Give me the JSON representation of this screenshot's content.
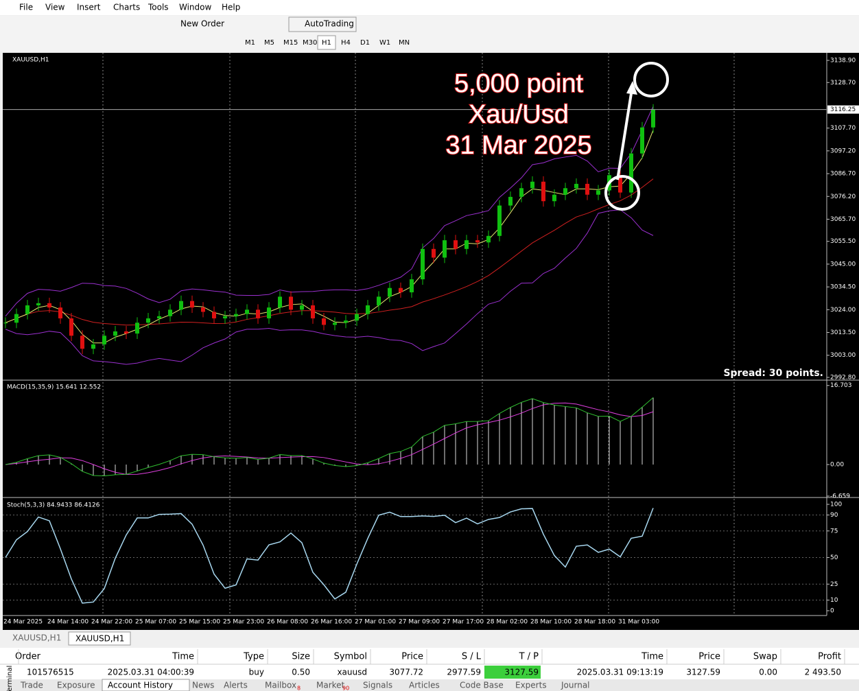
{
  "window": {
    "menu": [
      "File",
      "View",
      "Insert",
      "Charts",
      "Tools",
      "Window",
      "Help"
    ]
  },
  "toolbar": {
    "new_order": "New Order",
    "autotrading": "AutoTrading",
    "timeframes": [
      "M1",
      "M5",
      "M15",
      "M30",
      "H1",
      "H4",
      "D1",
      "W1",
      "MN"
    ]
  },
  "chart": {
    "symbol": "XAUUSD,H1",
    "price_ticks": [
      {
        "value": 3138.9,
        "label": "3138.90"
      },
      {
        "value": 3128.7,
        "label": "3128.70"
      },
      {
        "value": 3107.7,
        "label": "3107.70"
      },
      {
        "value": 3097.2,
        "label": "3097.20"
      },
      {
        "value": 3086.7,
        "label": "3086.70"
      },
      {
        "value": 3076.2,
        "label": "3076.20"
      },
      {
        "value": 3065.7,
        "label": "3065.70"
      },
      {
        "value": 3055.5,
        "label": "3055.50"
      },
      {
        "value": 3045,
        "label": "3045.00"
      },
      {
        "value": 3034.5,
        "label": "3034.50"
      },
      {
        "value": 3024,
        "label": "3024.00"
      },
      {
        "value": 3013.5,
        "label": "3013.50"
      },
      {
        "value": 3003,
        "label": "3003.00"
      },
      {
        "value": 2992.8,
        "label": "2992.80"
      }
    ],
    "current_price": {
      "value": 3116.25,
      "label": "3116.25"
    },
    "closes": [
      3018,
      3022,
      3026,
      3027,
      3025,
      3020,
      3012,
      3006,
      3008,
      3012,
      3014,
      3013,
      3018,
      3020,
      3021,
      3024,
      3028,
      3025,
      3023,
      3020,
      3021,
      3022,
      3024,
      3020,
      3025,
      3030,
      3024,
      3026,
      3020,
      3017,
      3018,
      3019,
      3022,
      3026,
      3030,
      3034,
      3032,
      3038,
      3052,
      3048,
      3056,
      3052,
      3056,
      3055,
      3058,
      3072,
      3076,
      3080,
      3083,
      3074,
      3077,
      3080,
      3082,
      3077,
      3079,
      3086,
      3078,
      3096,
      3108,
      3116.25
    ],
    "spread": "Spread: 30 points.",
    "annotation": [
      "5,000 point",
      "Xau/Usd",
      "31 Mar 2025"
    ],
    "macd_label": "MACD(15,35,9) 15.641 12.552",
    "macd_ticks": [
      {
        "value": 16.703,
        "label": "16.703"
      },
      {
        "value": 0,
        "label": "0.00"
      },
      {
        "value": -6.659,
        "label": "-6.659"
      }
    ],
    "stoch_label": "Stoch(5,3,3) 84.9433 86.4126",
    "stoch_ticks": [
      100,
      90,
      75,
      50,
      25,
      10,
      0
    ],
    "time_labels": [
      "24 Mar 2025",
      "24 Mar 14:00",
      "24 Mar 22:00",
      "25 Mar 07:00",
      "25 Mar 15:00",
      "25 Mar 23:00",
      "26 Mar 08:00",
      "26 Mar 16:00",
      "27 Mar 01:00",
      "27 Mar 09:00",
      "27 Mar 17:00",
      "28 Mar 02:00",
      "28 Mar 10:00",
      "28 Mar 18:00",
      "31 Mar 03:00"
    ]
  },
  "chart_tabs": [
    "XAUUSD,H1",
    "XAUUSD,H1"
  ],
  "terminal": {
    "columns": [
      "Order",
      "Time",
      "Type",
      "Size",
      "Symbol",
      "Price",
      "S / L",
      "T / P",
      "Time",
      "Price",
      "Swap",
      "Profit"
    ],
    "rows": [
      [
        "101576515",
        "2025.03.31 04:00:39",
        "buy",
        "0.50",
        "xauusd",
        "3077.72",
        "2977.59",
        "3127.59",
        "2025.03.31 09:13:19",
        "3127.59",
        "0.00",
        "2 493.50"
      ]
    ],
    "tabs": [
      "Trade",
      "Exposure",
      "Account History",
      "News",
      "Alerts",
      "Mailbox",
      "Market",
      "Signals",
      "Articles",
      "Code Base",
      "Experts",
      "Journal"
    ],
    "badges": {
      "mailbox": "8",
      "market": "90"
    },
    "side_label": "Terminal"
  }
}
